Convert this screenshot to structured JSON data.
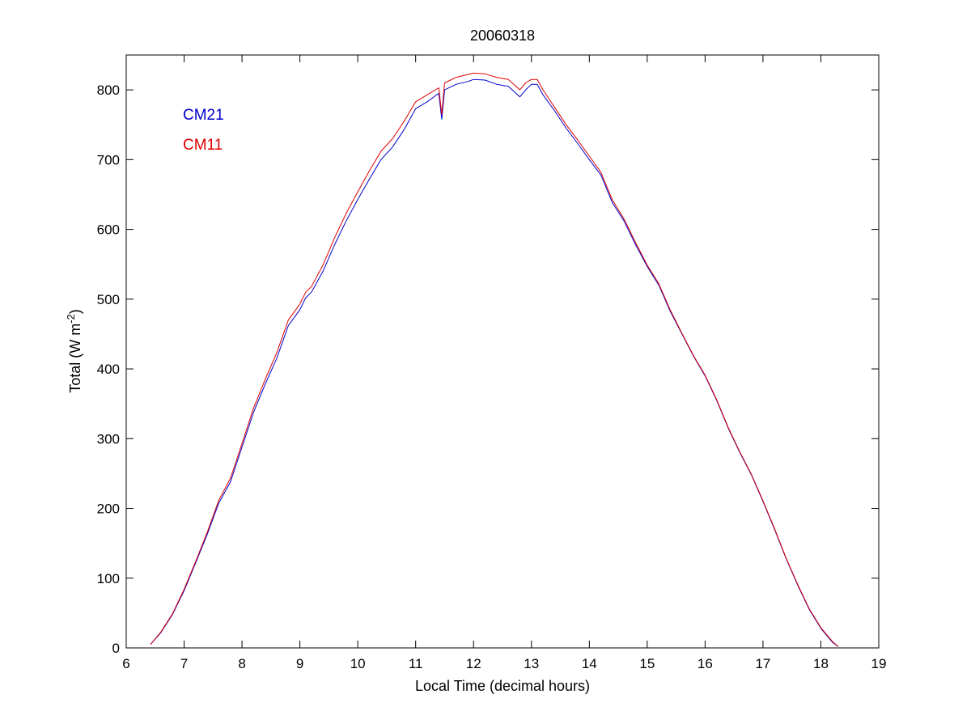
{
  "chart_data": {
    "type": "line",
    "title": "20060318",
    "xlabel": "Local Time (decimal hours)",
    "ylabel_main": "Total (W m",
    "ylabel_sup": "-2",
    "ylabel_close": ")",
    "xlim": [
      6,
      19
    ],
    "ylim": [
      0,
      850
    ],
    "xticks": [
      6,
      7,
      8,
      9,
      10,
      11,
      12,
      13,
      14,
      15,
      16,
      17,
      18,
      19
    ],
    "yticks": [
      0,
      100,
      200,
      300,
      400,
      500,
      600,
      700,
      800
    ],
    "grid": false,
    "legend_position": "top-left",
    "series": [
      {
        "name": "CM21",
        "color": "#0000cc",
        "x": [
          6.42,
          6.6,
          6.8,
          7.0,
          7.2,
          7.4,
          7.6,
          7.8,
          8.0,
          8.2,
          8.4,
          8.6,
          8.8,
          9.0,
          9.1,
          9.2,
          9.4,
          9.6,
          9.8,
          10.0,
          10.2,
          10.4,
          10.6,
          10.8,
          11.0,
          11.2,
          11.4,
          11.45,
          11.5,
          11.7,
          11.9,
          12.0,
          12.2,
          12.4,
          12.6,
          12.8,
          12.9,
          13.0,
          13.1,
          13.2,
          13.4,
          13.6,
          13.8,
          14.0,
          14.2,
          14.4,
          14.6,
          14.8,
          15.0,
          15.2,
          15.4,
          15.6,
          15.8,
          16.0,
          16.2,
          16.4,
          16.6,
          16.8,
          17.0,
          17.2,
          17.4,
          17.6,
          17.8,
          18.0,
          18.2,
          18.3
        ],
        "y": [
          5,
          22,
          48,
          82,
          122,
          163,
          208,
          238,
          288,
          338,
          378,
          415,
          462,
          485,
          502,
          510,
          540,
          578,
          612,
          643,
          672,
          700,
          718,
          743,
          773,
          783,
          795,
          758,
          800,
          808,
          812,
          815,
          814,
          808,
          805,
          790,
          800,
          808,
          808,
          793,
          770,
          745,
          723,
          700,
          678,
          638,
          612,
          578,
          547,
          520,
          482,
          450,
          418,
          390,
          355,
          315,
          280,
          248,
          210,
          170,
          128,
          90,
          55,
          28,
          8,
          2
        ]
      },
      {
        "name": "CM11",
        "color": "#dd0000",
        "x": [
          6.42,
          6.6,
          6.8,
          7.0,
          7.2,
          7.4,
          7.6,
          7.8,
          8.0,
          8.2,
          8.4,
          8.6,
          8.8,
          9.0,
          9.1,
          9.2,
          9.4,
          9.6,
          9.8,
          10.0,
          10.2,
          10.4,
          10.6,
          10.8,
          11.0,
          11.2,
          11.4,
          11.45,
          11.5,
          11.7,
          11.9,
          12.0,
          12.2,
          12.4,
          12.6,
          12.8,
          12.9,
          13.0,
          13.1,
          13.2,
          13.4,
          13.6,
          13.8,
          14.0,
          14.2,
          14.4,
          14.6,
          14.8,
          15.0,
          15.2,
          15.4,
          15.6,
          15.8,
          16.0,
          16.2,
          16.4,
          16.6,
          16.8,
          17.0,
          17.2,
          17.4,
          17.6,
          17.8,
          18.0,
          18.2,
          18.3
        ],
        "y": [
          5,
          23,
          49,
          84,
          124,
          166,
          212,
          243,
          293,
          344,
          385,
          423,
          470,
          493,
          510,
          518,
          549,
          588,
          623,
          654,
          684,
          712,
          730,
          755,
          783,
          793,
          803,
          765,
          810,
          818,
          822,
          824,
          823,
          818,
          815,
          800,
          810,
          815,
          815,
          800,
          775,
          750,
          728,
          705,
          682,
          642,
          615,
          581,
          549,
          522,
          484,
          451,
          419,
          391,
          356,
          316,
          281,
          249,
          211,
          171,
          129,
          91,
          56,
          29,
          9,
          2
        ]
      }
    ]
  }
}
